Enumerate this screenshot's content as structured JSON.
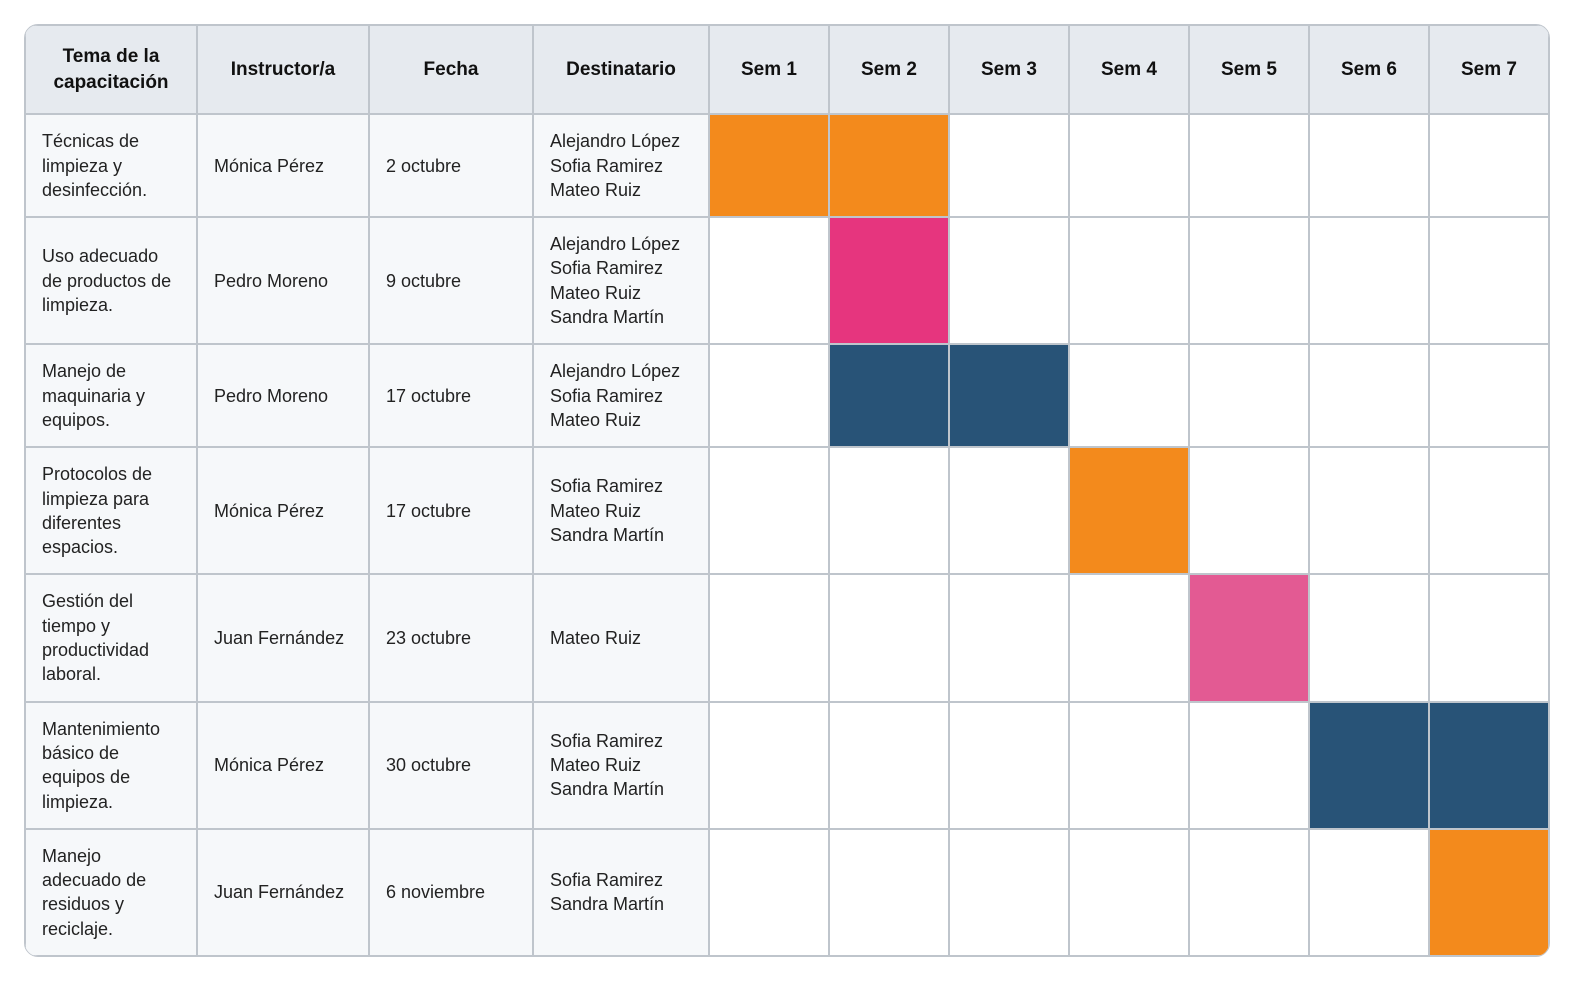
{
  "colors": {
    "header_bg": "#e6eaef",
    "info_bg": "#f6f8fa",
    "border": "#bfc5cc",
    "orange": "#f38a1c",
    "pink_dark": "#e6357e",
    "pink": "#e35a93",
    "navy": "#285377",
    "white": "#ffffff"
  },
  "headers": {
    "topic": "Tema de la capacitación",
    "instructor": "Instructor/a",
    "date": "Fecha",
    "recipient": "Destinatario",
    "weeks": [
      "Sem 1",
      "Sem 2",
      "Sem 3",
      "Sem 4",
      "Sem 5",
      "Sem 6",
      "Sem 7"
    ]
  },
  "rows": [
    {
      "topic": "Técnicas de limpieza y desinfección.",
      "instructor": "Mónica Pérez",
      "date": "2 octubre",
      "recipients": [
        "Alejandro López",
        "Sofia Ramirez",
        "Mateo Ruiz"
      ],
      "weeks": [
        "orange",
        "orange",
        "",
        "",
        "",
        "",
        ""
      ]
    },
    {
      "topic": "Uso adecuado de productos de limpieza.",
      "instructor": "Pedro Moreno",
      "date": "9 octubre",
      "recipients": [
        "Alejandro López",
        "Sofia Ramirez",
        "Mateo Ruiz",
        "Sandra Martín"
      ],
      "weeks": [
        "",
        "pink_dark",
        "",
        "",
        "",
        "",
        ""
      ]
    },
    {
      "topic": "Manejo de maquinaria y equipos.",
      "instructor": "Pedro Moreno",
      "date": "17 octubre",
      "recipients": [
        "Alejandro López",
        "Sofia Ramirez",
        "Mateo Ruiz"
      ],
      "weeks": [
        "",
        "navy",
        "navy",
        "",
        "",
        "",
        ""
      ]
    },
    {
      "topic": "Protocolos de limpieza para diferentes espacios.",
      "instructor": "Mónica Pérez",
      "date": "17 octubre",
      "recipients": [
        "Sofia Ramirez",
        "Mateo Ruiz",
        "Sandra Martín"
      ],
      "weeks": [
        "",
        "",
        "",
        "orange",
        "",
        "",
        ""
      ]
    },
    {
      "topic": "Gestión del tiempo y productividad laboral.",
      "instructor": "Juan Fernández",
      "date": "23 octubre",
      "recipients": [
        "Mateo Ruiz"
      ],
      "weeks": [
        "",
        "",
        "",
        "",
        "pink",
        "",
        ""
      ]
    },
    {
      "topic": "Mantenimiento básico de equipos de limpieza.",
      "instructor": "Mónica Pérez",
      "date": "30 octubre",
      "recipients": [
        "Sofia Ramirez",
        "Mateo Ruiz",
        "Sandra Martín"
      ],
      "weeks": [
        "",
        "",
        "",
        "",
        "",
        "navy",
        "navy"
      ]
    },
    {
      "topic": "Manejo adecuado de residuos y reciclaje.",
      "instructor": "Juan Fernández",
      "date": "6 noviembre",
      "recipients": [
        "Sofia Ramirez",
        "Sandra Martín"
      ],
      "weeks": [
        "",
        "",
        "",
        "",
        "",
        "",
        "orange"
      ]
    }
  ]
}
